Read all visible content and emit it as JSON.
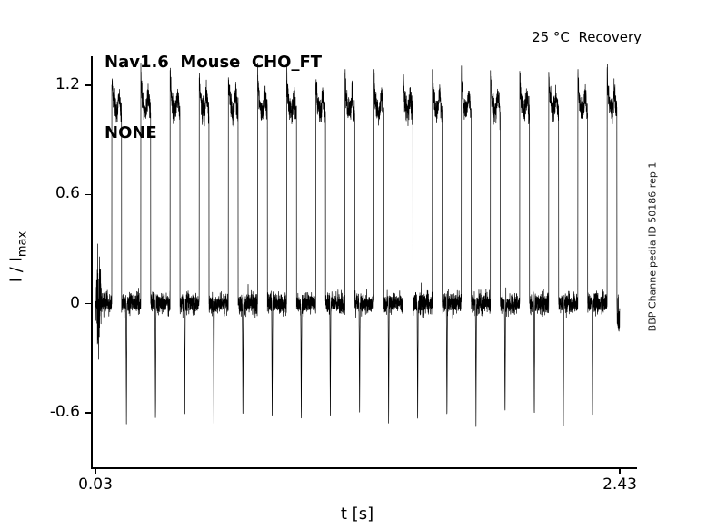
{
  "title_line1": "Nav1.6  Mouse  CHO_FT",
  "title_line2": "NONE",
  "annotation": "25 °C  Recovery",
  "watermark": "BBP Channelpedia ID 50186 rep 1",
  "axes": {
    "ylabel_main": "I / I",
    "ylabel_sub": "max",
    "xlabel": "t [s]",
    "ytick_labels": [
      "1.2",
      "0.6",
      "0",
      "-0.6"
    ],
    "xtick_labels": [
      "0.03",
      "2.43"
    ]
  },
  "chart_data": {
    "type": "line",
    "title": "Nav1.6 Mouse CHO_FT NONE",
    "annotation": "25 °C Recovery",
    "xlabel": "t [s]",
    "ylabel": "I / I_max",
    "xlim": [
      0.03,
      2.43
    ],
    "ylim": [
      -0.9,
      1.36
    ],
    "yticks": [
      1.2,
      0.6,
      0,
      -0.6
    ],
    "xticks": [
      0.03,
      2.43
    ],
    "grid": false,
    "legend": false,
    "line_color": "#000000",
    "background": "#ffffff",
    "baseline": 0,
    "noise_sigma": 0.028,
    "pulse_times": [
      0.105,
      0.238,
      0.372,
      0.505,
      0.638,
      0.772,
      0.905,
      1.038,
      1.172,
      1.305,
      1.438,
      1.572,
      1.705,
      1.838,
      1.972,
      2.105,
      2.238,
      2.372
    ],
    "pulse_peak": 1.26,
    "pulse_plateau": 1.05,
    "pulse_width_s": 0.045,
    "tail_spike_times": [
      0.172,
      0.305,
      0.439,
      0.572,
      0.705,
      0.839,
      0.972,
      1.105,
      1.239,
      1.372,
      1.505,
      1.639,
      1.772,
      1.905,
      2.039,
      2.172,
      2.305
    ],
    "tail_spike_amp": -0.66,
    "start_burst": {
      "t": 0.045,
      "amp": 0.3,
      "width_s": 0.01
    },
    "end_segment": {
      "t_start": 2.417,
      "mean": -0.06,
      "sigma": 0.05
    }
  }
}
